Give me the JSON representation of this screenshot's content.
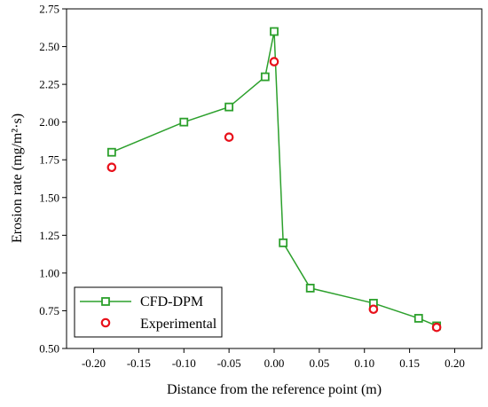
{
  "chart_data": {
    "type": "line",
    "title": "",
    "xlabel": "Distance from the reference point (m)",
    "ylabel": "Erosion rate (mg/m²·s)",
    "xlim": [
      -0.23,
      0.23
    ],
    "ylim": [
      0.5,
      2.75
    ],
    "x_ticks": [
      -0.2,
      -0.15,
      -0.1,
      -0.05,
      0.0,
      0.05,
      0.1,
      0.15,
      0.2
    ],
    "x_tick_labels": [
      "-0.20",
      "-0.15",
      "-0.10",
      "-0.05",
      "0.00",
      "0.05",
      "0.10",
      "0.15",
      "0.20"
    ],
    "y_ticks": [
      0.5,
      0.75,
      1.0,
      1.25,
      1.5,
      1.75,
      2.0,
      2.25,
      2.5,
      2.75
    ],
    "y_tick_labels": [
      "0.50",
      "0.75",
      "1.00",
      "1.25",
      "1.50",
      "1.75",
      "2.00",
      "2.25",
      "2.50",
      "2.75"
    ],
    "grid": false,
    "legend_position": "bottom-left",
    "series": [
      {
        "name": "CFD-DPM",
        "style": "line-with-square-markers",
        "color": "#2ca02c",
        "x": [
          -0.18,
          -0.1,
          -0.05,
          -0.01,
          0.0,
          0.01,
          0.04,
          0.11,
          0.16,
          0.18
        ],
        "y": [
          1.8,
          2.0,
          2.1,
          2.3,
          2.6,
          1.2,
          0.9,
          0.8,
          0.7,
          0.65
        ]
      },
      {
        "name": "Experimental",
        "style": "circle-markers",
        "color": "#e8101a",
        "x": [
          -0.18,
          -0.05,
          0.0,
          0.11,
          0.18
        ],
        "y": [
          1.7,
          1.9,
          2.4,
          0.76,
          0.64
        ]
      }
    ]
  }
}
